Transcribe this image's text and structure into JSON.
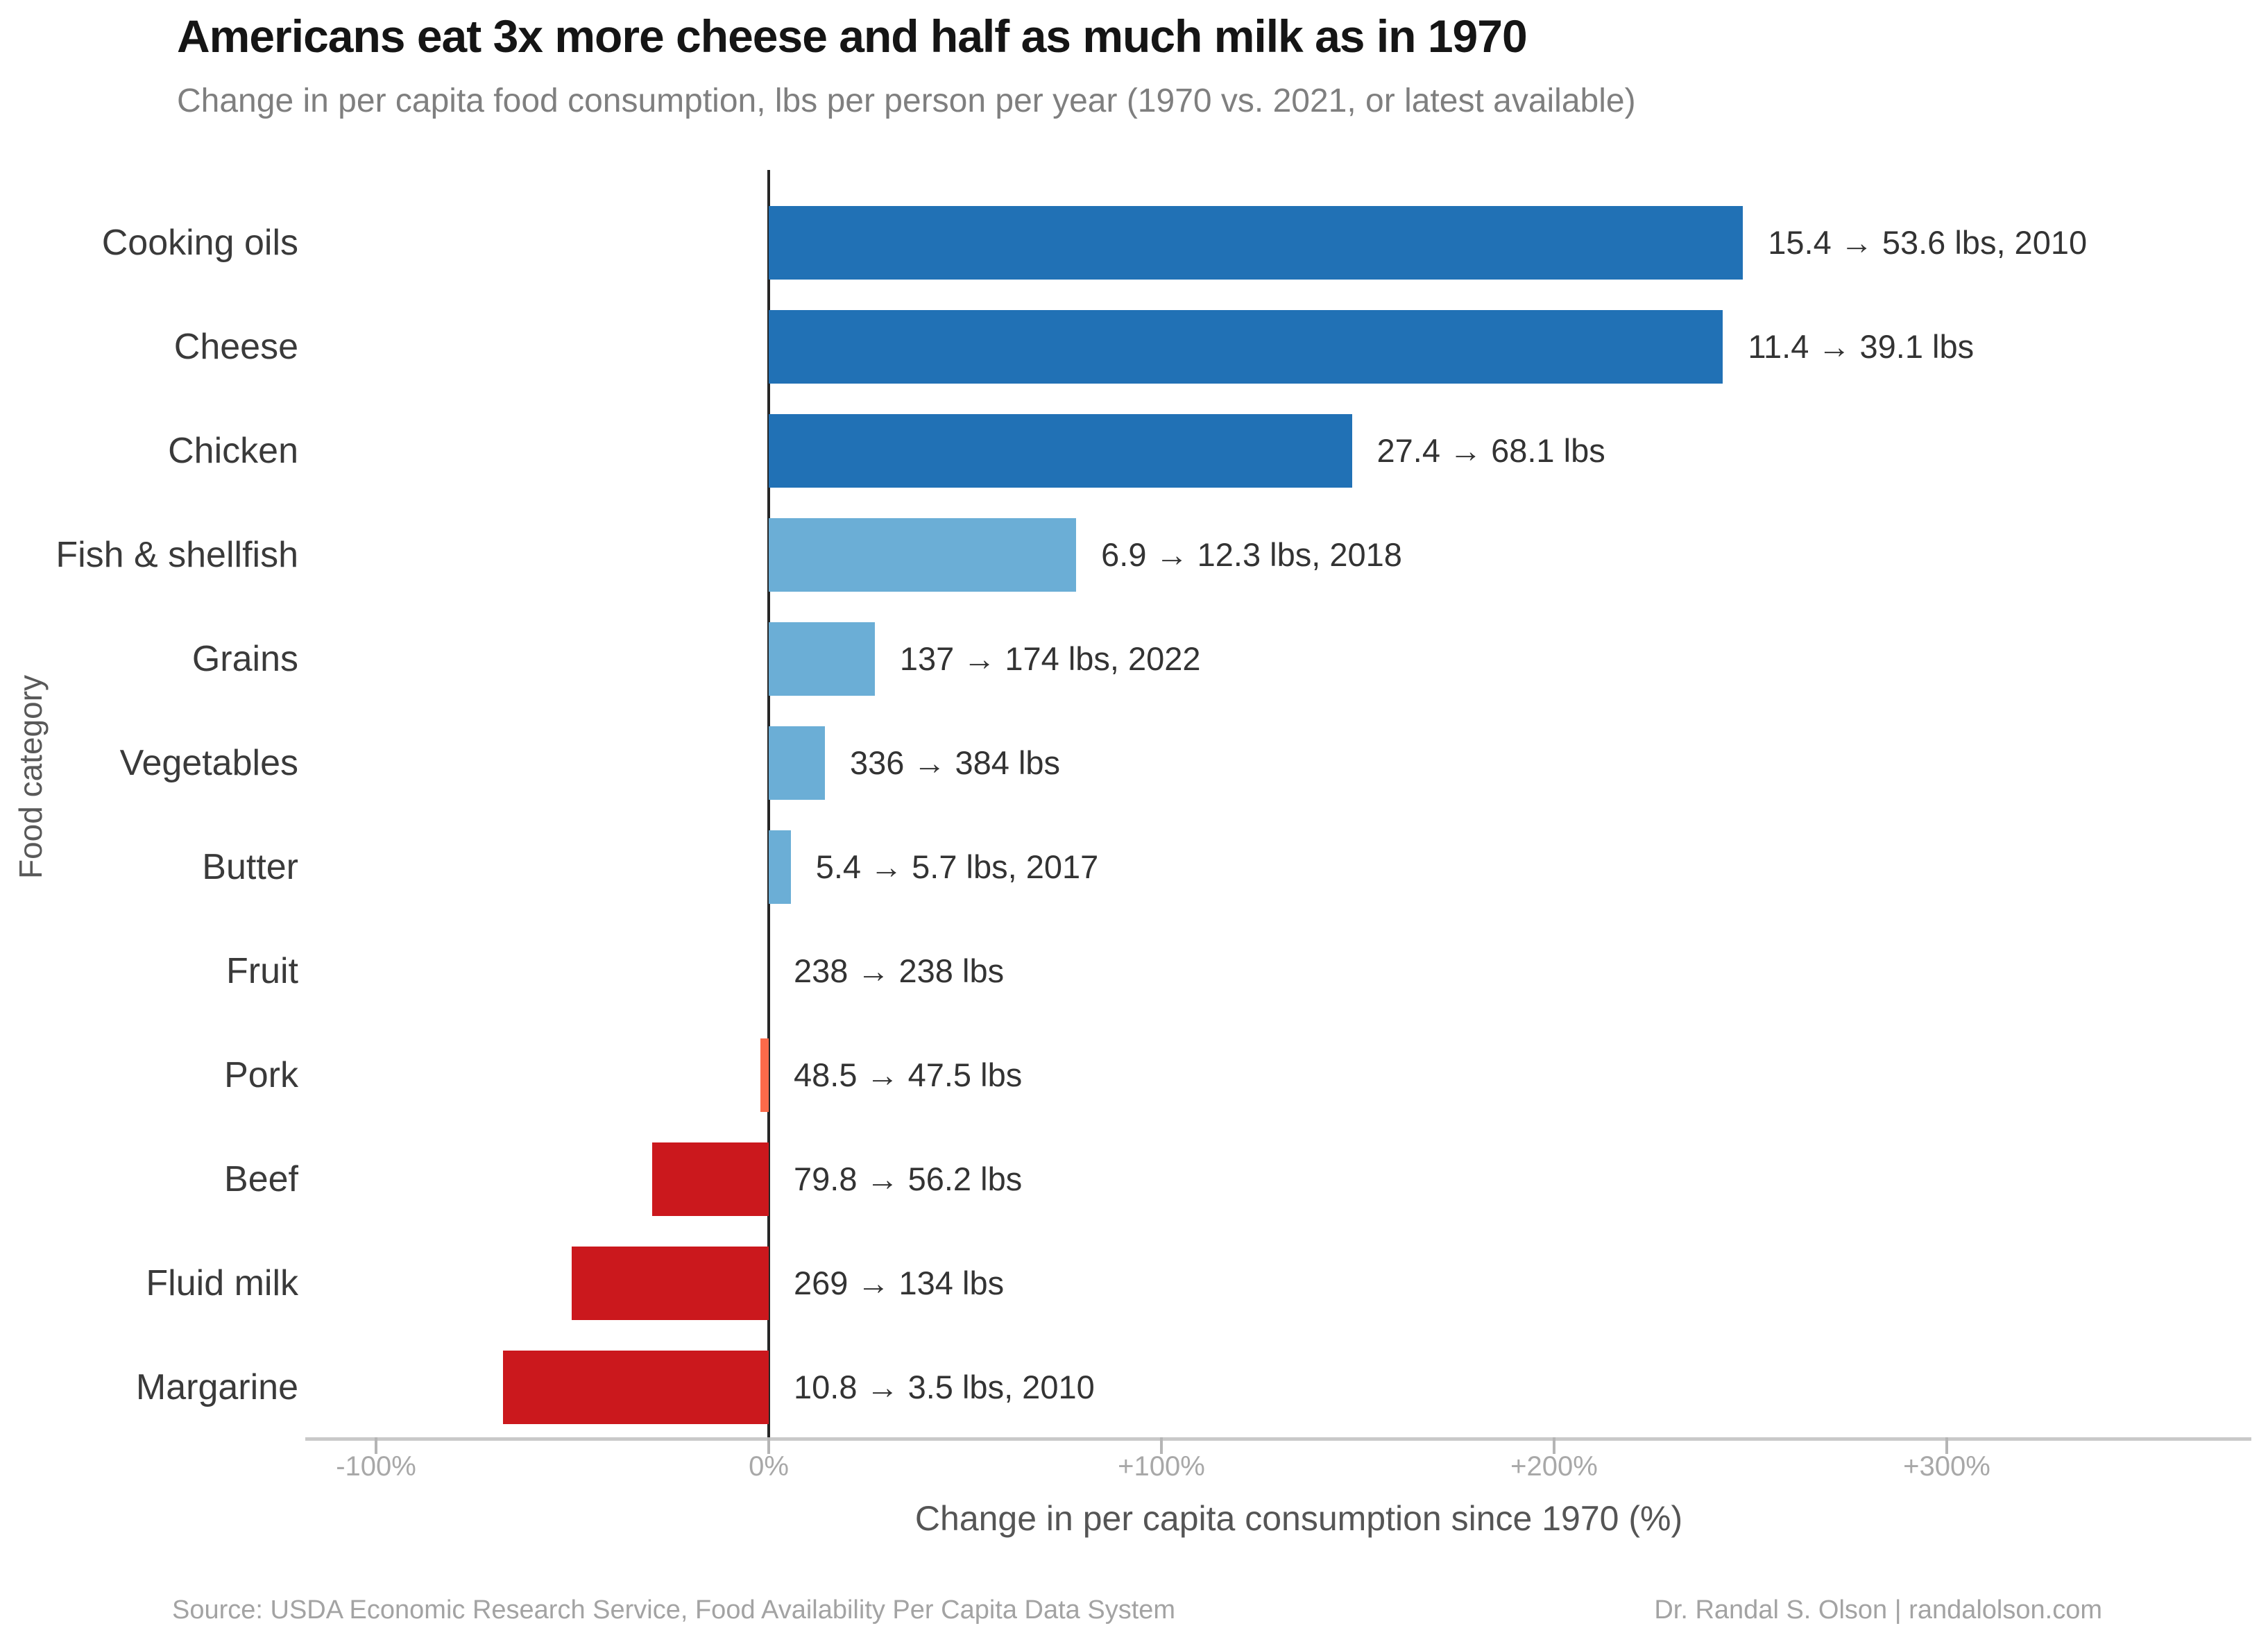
{
  "header": {
    "title": "Americans eat 3x more cheese and half as much milk as in 1970",
    "subtitle": "Change in per capita food consumption, lbs per person per year (1970 vs. 2021, or latest available)"
  },
  "chart_data": {
    "type": "bar",
    "orientation": "horizontal",
    "title": "Americans eat 3x more cheese and half as much milk as in 1970",
    "subtitle": "Change in per capita food consumption, lbs per person per year (1970 vs. 2021, or latest available)",
    "xlabel": "Change in per capita consumption since 1970 (%)",
    "ylabel": "Food category",
    "xlim": [
      -118,
      377
    ],
    "grid": false,
    "legend": "none",
    "x_ticks": [
      {
        "value": -100,
        "label": "-100%"
      },
      {
        "value": 0,
        "label": "0%"
      },
      {
        "value": 100,
        "label": "+100%"
      },
      {
        "value": 200,
        "label": "+200%"
      },
      {
        "value": 300,
        "label": "+300%"
      }
    ],
    "bars": [
      {
        "category": "Cooking oils",
        "pct_change": 248.1,
        "from_lbs": 15.4,
        "to_lbs": 53.6,
        "annotation": "15.4 → 53.6 lbs, 2010",
        "color": "#2171b5"
      },
      {
        "category": "Cheese",
        "pct_change": 243.0,
        "from_lbs": 11.4,
        "to_lbs": 39.1,
        "annotation": "11.4 → 39.1 lbs",
        "color": "#2171b5"
      },
      {
        "category": "Chicken",
        "pct_change": 148.5,
        "from_lbs": 27.4,
        "to_lbs": 68.1,
        "annotation": "27.4 → 68.1 lbs",
        "color": "#2171b5"
      },
      {
        "category": "Fish & shellfish",
        "pct_change": 78.3,
        "from_lbs": 6.9,
        "to_lbs": 12.3,
        "annotation": "6.9 → 12.3 lbs, 2018",
        "color": "#6baed6"
      },
      {
        "category": "Grains",
        "pct_change": 27.0,
        "from_lbs": 137,
        "to_lbs": 174,
        "annotation": "137 → 174 lbs, 2022",
        "color": "#6baed6"
      },
      {
        "category": "Vegetables",
        "pct_change": 14.3,
        "from_lbs": 336,
        "to_lbs": 384,
        "annotation": "336 → 384 lbs",
        "color": "#6baed6"
      },
      {
        "category": "Butter",
        "pct_change": 5.6,
        "from_lbs": 5.4,
        "to_lbs": 5.7,
        "annotation": "5.4 → 5.7 lbs, 2017",
        "color": "#6baed6"
      },
      {
        "category": "Fruit",
        "pct_change": 0.0,
        "from_lbs": 238,
        "to_lbs": 238,
        "annotation": "238 → 238 lbs",
        "color": "#6baed6"
      },
      {
        "category": "Pork",
        "pct_change": -2.1,
        "from_lbs": 48.5,
        "to_lbs": 47.5,
        "annotation": "48.5 → 47.5 lbs",
        "color": "#fb6a4a"
      },
      {
        "category": "Beef",
        "pct_change": -29.6,
        "from_lbs": 79.8,
        "to_lbs": 56.2,
        "annotation": "79.8 → 56.2 lbs",
        "color": "#cb181d"
      },
      {
        "category": "Fluid milk",
        "pct_change": -50.2,
        "from_lbs": 269,
        "to_lbs": 134,
        "annotation": "269 → 134 lbs",
        "color": "#cb181d"
      },
      {
        "category": "Margarine",
        "pct_change": -67.6,
        "from_lbs": 10.8,
        "to_lbs": 3.5,
        "annotation": "10.8 → 3.5 lbs, 2010",
        "color": "#cb181d"
      }
    ],
    "colors": {
      "strong_increase": "#2171b5",
      "moderate_increase": "#6baed6",
      "slight_decrease": "#fb6a4a",
      "decrease": "#cb181d",
      "zero_axis_line": "#262626",
      "baseline": "#c9c9c9",
      "tick": "#b5b5b5"
    }
  },
  "footer": {
    "source": "Source: USDA Economic Research Service, Food Availability Per Capita Data System",
    "credit": "Dr. Randal S. Olson  |  randalolson.com"
  }
}
